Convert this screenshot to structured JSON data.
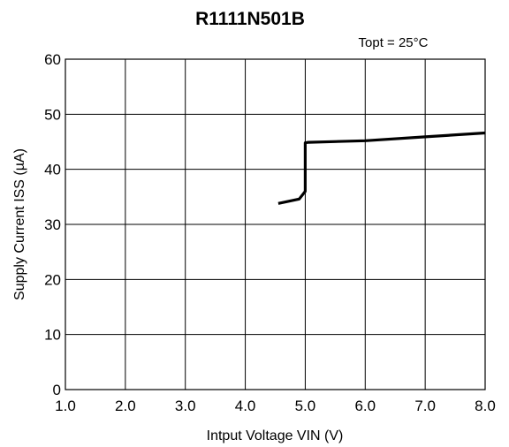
{
  "chart_data": {
    "type": "line",
    "title": "R1111N501B",
    "annotation": "Topt = 25°C",
    "xlabel": "Intput Voltage VIN (V)",
    "ylabel": "Supply Current  ISS (µA)",
    "xlim": [
      1.0,
      8.0
    ],
    "ylim": [
      0,
      60
    ],
    "xticks": [
      "1.0",
      "2.0",
      "3.0",
      "4.0",
      "5.0",
      "6.0",
      "7.0",
      "8.0"
    ],
    "yticks": [
      "0",
      "10",
      "20",
      "30",
      "40",
      "50",
      "60"
    ],
    "grid": true,
    "series": [
      {
        "x": [
          4.55,
          4.9,
          5.0,
          5.0,
          5.05,
          6.0,
          7.0,
          8.0
        ],
        "y": [
          33.8,
          34.6,
          36.0,
          44.8,
          44.9,
          45.2,
          45.9,
          46.6
        ]
      }
    ]
  }
}
